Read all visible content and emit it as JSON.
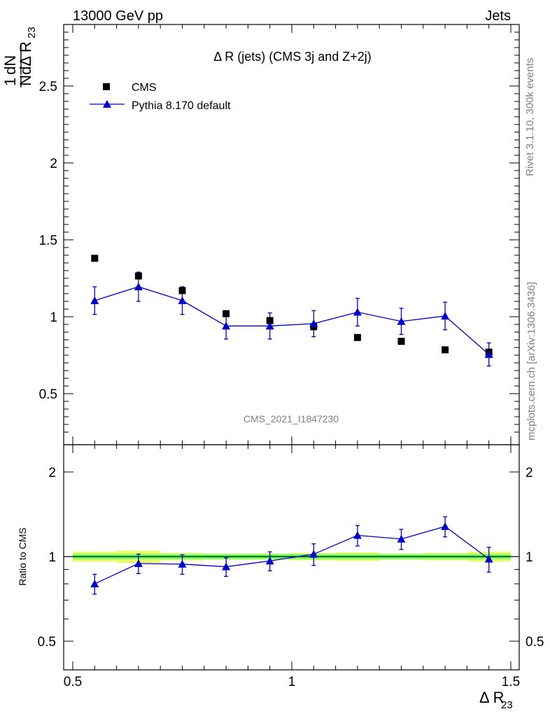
{
  "header": {
    "left": "13000 GeV pp",
    "right": "Jets"
  },
  "side_text": {
    "rivet": "Rivet 3.1.10,  300k events",
    "mcplots": "mcplots.cern.ch [arXiv:1306.3436]"
  },
  "chart_data": [
    {
      "type": "scatter",
      "panel": "main",
      "title": "Δ R (jets) (CMS 3j and Z+2j)",
      "watermark": "CMS_2021_I1847230",
      "ylabel": {
        "pre": "1",
        "mid": "dN",
        "den_n": "N",
        "den_d": "dΔ R",
        "sub": "23"
      },
      "xlim": [
        0.5,
        1.5
      ],
      "ylim": [
        0.2,
        2.9
      ],
      "yticks": [
        "0.5",
        "1",
        "1.5",
        "2",
        "2.5"
      ],
      "legend": {
        "position": "top-left",
        "cms": "CMS",
        "mc": "Pythia 8.170 default"
      },
      "colors": {
        "data": "#000000",
        "mc": "#0000cc"
      },
      "x": [
        0.55,
        0.65,
        0.75,
        0.85,
        0.95,
        1.05,
        1.15,
        1.25,
        1.35,
        1.45
      ],
      "series": [
        {
          "name": "CMS",
          "values": [
            1.38,
            1.265,
            1.17,
            1.02,
            0.975,
            0.935,
            0.865,
            0.84,
            0.785,
            0.77
          ]
        },
        {
          "name": "Pythia 8.170 default",
          "values": [
            1.105,
            1.195,
            1.105,
            0.94,
            0.94,
            0.955,
            1.03,
            0.97,
            1.005,
            0.755
          ],
          "err": [
            0.09,
            0.095,
            0.09,
            0.085,
            0.085,
            0.085,
            0.09,
            0.085,
            0.09,
            0.075
          ]
        }
      ]
    },
    {
      "type": "line",
      "panel": "ratio",
      "ylabel": "Ratio to CMS",
      "xlabel": {
        "main": "Δ R",
        "sub": "23"
      },
      "xlim": [
        0.5,
        1.5
      ],
      "ylim": [
        0.4,
        2.3
      ],
      "yticks": [
        "0.5",
        "1",
        "2"
      ],
      "xticks": [
        "0.5",
        "1",
        "1.5"
      ],
      "x": [
        0.55,
        0.65,
        0.75,
        0.85,
        0.95,
        1.05,
        1.15,
        1.25,
        1.35,
        1.45
      ],
      "band": {
        "inner": 0.02,
        "outer": [
          0.04,
          0.05,
          0.03,
          0.025,
          0.025,
          0.03,
          0.035,
          0.025,
          0.03,
          0.04
        ],
        "inner_color": "#66ff66",
        "outer_color": "#eaff66"
      },
      "series": [
        {
          "name": "Pythia 8.170 default",
          "values": [
            0.8,
            0.945,
            0.94,
            0.92,
            0.965,
            1.02,
            1.19,
            1.155,
            1.28,
            0.98
          ],
          "err": [
            0.065,
            0.075,
            0.075,
            0.07,
            0.075,
            0.09,
            0.1,
            0.095,
            0.105,
            0.1
          ]
        }
      ]
    }
  ]
}
